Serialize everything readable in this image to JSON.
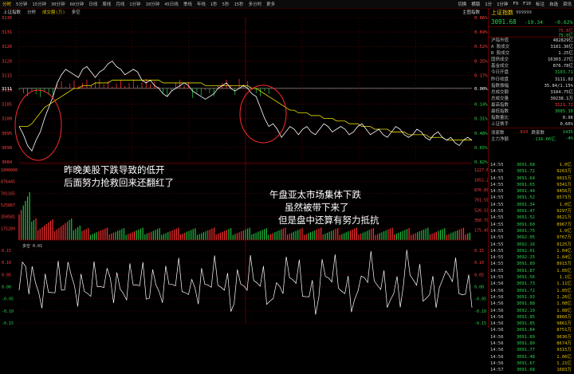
{
  "top_tabs": [
    "分时",
    "5分钟",
    "15分钟",
    "30分钟",
    "60分钟",
    "日线",
    "周线",
    "月线",
    "1分钟",
    "10分钟",
    "45日线",
    "季线",
    "年线",
    "1秒",
    "5秒",
    "15秒",
    "多分时",
    "更多"
  ],
  "top_right": [
    "切换",
    "横版",
    "1分",
    "1分钟",
    "F9",
    "F10",
    "标注",
    "自选",
    "资讯"
  ],
  "sub_bar": {
    "name": "上证指数",
    "mode": "分时",
    "vol": "成交额(万)",
    "extra": "多空",
    "right": "主图指数"
  },
  "left_axis": [
    "3136",
    "3131",
    "3126",
    "3120",
    "3115",
    "3110",
    "3105",
    "3100",
    "3095",
    "3090",
    "3084"
  ],
  "left_ref": "3111",
  "right_axis": [
    "0.86%",
    "0.69%",
    "0.52%",
    "0.35%",
    "0.17%",
    "",
    "0.14%",
    "0.31%",
    "0.48%",
    "0.65%",
    "0.82%"
  ],
  "right_ref": "0.00%",
  "vol_left": [
    "1000000",
    "876445",
    "701165",
    "525867",
    "350581",
    "175289"
  ],
  "vol_right": [
    "1227.6亿",
    "1052.2亿",
    "876.8亿",
    "701.5亿",
    "526.1亿",
    "350.7亿",
    "175.4亿"
  ],
  "osc": {
    "label": "多空 0.01",
    "levels": [
      "0.15",
      "0.10",
      "0.05",
      "0.00",
      "-0.05",
      "-0.10",
      "-0.15"
    ]
  },
  "annotations": {
    "left": [
      "昨晚美股下跌导致的低开",
      "后面努力抢救回来还翻红了"
    ],
    "right": [
      "午盘亚太市场集体下跌",
      "虽然被带下来了",
      "但是盘中还算有努力抵抗"
    ]
  },
  "colors": {
    "price": "#ffffff",
    "avg": "#e8e000",
    "grid": "#5a0000",
    "ellipse": "#ff2a2a",
    "up": "#ff3030",
    "down": "#22c040",
    "panel_green": "#2ad14b"
  },
  "panel": {
    "name": "上证指数",
    "code": "999999",
    "price": "3091.68",
    "change": "-19.34",
    "pct": "-0.62%",
    "bar_r1": "75.6亿",
    "bar_r2": "75.0亿",
    "rows": [
      {
        "k": "沪指市值",
        "v": "482829亿",
        "c": ""
      },
      {
        "k": "A 股成交",
        "v": "3181.36亿",
        "c": ""
      },
      {
        "k": "B 股成交",
        "v": "1.25亿",
        "c": ""
      },
      {
        "k": "国债成交",
        "v": "16303.27亿",
        "c": ""
      },
      {
        "k": "基金成交",
        "v": "876.78亿",
        "c": ""
      },
      {
        "k": "今日开盘",
        "v": "3103.71",
        "c": "green"
      },
      {
        "k": "昨日收盘",
        "v": "3111.02",
        "c": ""
      },
      {
        "k": "指数振幅",
        "v": "35.84/1.15%",
        "c": ""
      },
      {
        "k": "总成交额",
        "v": "3184.75亿",
        "c": ""
      },
      {
        "k": "总成交量",
        "v": "30238.1万",
        "c": ""
      },
      {
        "k": "最高指数",
        "v": "3121.72",
        "c": "red"
      },
      {
        "k": "最低指数",
        "v": "3085.38",
        "c": "green"
      },
      {
        "k": "指数量比",
        "v": "0.96",
        "c": ""
      },
      {
        "k": "上证换手",
        "v": "0.66%",
        "c": ""
      }
    ],
    "ratio": {
      "k": "涨家数",
      "v1": "810",
      "k2": "跌家数",
      "v2": "1435"
    },
    "flow": {
      "k": "主力净额",
      "v1": "-116.66亿",
      "v2": "-4%"
    },
    "ticks": [
      [
        "14:55",
        "3091.68",
        "1.0亿"
      ],
      [
        "14:55",
        "3091.72",
        "9263万"
      ],
      [
        "14:55",
        "3091.64",
        "9015万"
      ],
      [
        "14:55",
        "3091.65",
        "9341万"
      ],
      [
        "14:55",
        "3091.44",
        "9456万"
      ],
      [
        "14:55",
        "3091.52",
        "8573万"
      ],
      [
        "14:55",
        "3091.34",
        "1.0亿"
      ],
      [
        "14:55",
        "3091.47",
        "9297万"
      ],
      [
        "14:55",
        "3091.52",
        "9621万"
      ],
      [
        "14:55",
        "3091.60",
        "8967万"
      ],
      [
        "14:55",
        "3091.75",
        "1.0亿"
      ],
      [
        "14:55",
        "3092.05",
        "9767万"
      ],
      [
        "14:55",
        "3092.16",
        "9125万"
      ],
      [
        "14:55",
        "3092.01",
        "1.04亿"
      ],
      [
        "14:55",
        "3092.25",
        "1.04亿"
      ],
      [
        "14:55",
        "3091.89",
        "8915万"
      ],
      [
        "14:55",
        "3091.87",
        "1.05亿"
      ],
      [
        "14:55",
        "3091.56",
        "1.1亿"
      ],
      [
        "14:56",
        "3091.73",
        "1.11亿"
      ],
      [
        "14:56",
        "3091.72",
        "1.05亿"
      ],
      [
        "14:56",
        "3091.93",
        "1.26亿"
      ],
      [
        "14:56",
        "3091.88",
        "1.08亿"
      ],
      [
        "14:56",
        "3092.19",
        "1.08亿"
      ],
      [
        "14:56",
        "3091.85",
        "8860万"
      ],
      [
        "14:56",
        "3091.85",
        "9861万"
      ],
      [
        "14:56",
        "3091.84",
        "8751万"
      ],
      [
        "14:56",
        "3091.89",
        "9630万"
      ],
      [
        "14:56",
        "3091.80",
        "8674万"
      ],
      [
        "14:56",
        "3091.77",
        "9315万"
      ],
      [
        "14:56",
        "3091.48",
        "1.06亿"
      ],
      [
        "14:56",
        "3091.67",
        "1.21亿"
      ],
      [
        "14:57",
        "3091.68",
        "1683万"
      ]
    ]
  },
  "series": {
    "price": [
      3097,
      3094,
      3090,
      3088,
      3092,
      3095,
      3100,
      3104,
      3108,
      3113,
      3116,
      3118,
      3117,
      3116,
      3115,
      3118,
      3119,
      3117,
      3115,
      3117,
      3118,
      3120,
      3121,
      3119,
      3118,
      3116,
      3117,
      3118,
      3117,
      3114,
      3113,
      3114,
      3112,
      3111,
      3109,
      3108,
      3110,
      3111,
      3112,
      3113,
      3112,
      3110,
      3109,
      3108,
      3107,
      3108,
      3109,
      3111,
      3112,
      3113,
      3111,
      3110,
      3111,
      3112,
      3111,
      3109,
      3108,
      3104,
      3100,
      3097,
      3098,
      3096,
      3093,
      3095,
      3097,
      3096,
      3094,
      3096,
      3097,
      3095,
      3094,
      3096,
      3098,
      3097,
      3095,
      3096,
      3097,
      3096,
      3094,
      3095,
      3097,
      3098,
      3096,
      3094,
      3095,
      3096,
      3094,
      3093,
      3095,
      3097,
      3096,
      3094,
      3093,
      3094,
      3096,
      3095,
      3093,
      3092,
      3094,
      3095,
      3093,
      3092,
      3093,
      3091,
      3090,
      3092,
      3093,
      3092
    ],
    "avg": [
      3097,
      3097,
      3097,
      3098,
      3100,
      3102,
      3104,
      3105,
      3106,
      3107,
      3108,
      3109,
      3110,
      3111,
      3111,
      3112,
      3112,
      3112,
      3113,
      3113,
      3113,
      3113,
      3114,
      3114,
      3114,
      3114,
      3114,
      3114,
      3114,
      3114,
      3114,
      3114,
      3114,
      3114,
      3113,
      3113,
      3113,
      3113,
      3113,
      3113,
      3113,
      3113,
      3113,
      3113,
      3112,
      3112,
      3112,
      3112,
      3112,
      3112,
      3112,
      3112,
      3112,
      3112,
      3112,
      3111,
      3111,
      3110,
      3109,
      3108,
      3107,
      3106,
      3105,
      3104,
      3103,
      3103,
      3102,
      3102,
      3102,
      3101,
      3101,
      3101,
      3100,
      3100,
      3100,
      3099,
      3099,
      3099,
      3098,
      3098,
      3098,
      3097,
      3097,
      3097,
      3096,
      3096,
      3096,
      3096,
      3095,
      3095,
      3095,
      3095,
      3094,
      3094,
      3094,
      3094,
      3094,
      3093,
      3093,
      3093,
      3093,
      3092,
      3092,
      3092,
      3092,
      3092,
      3092,
      3092
    ]
  }
}
